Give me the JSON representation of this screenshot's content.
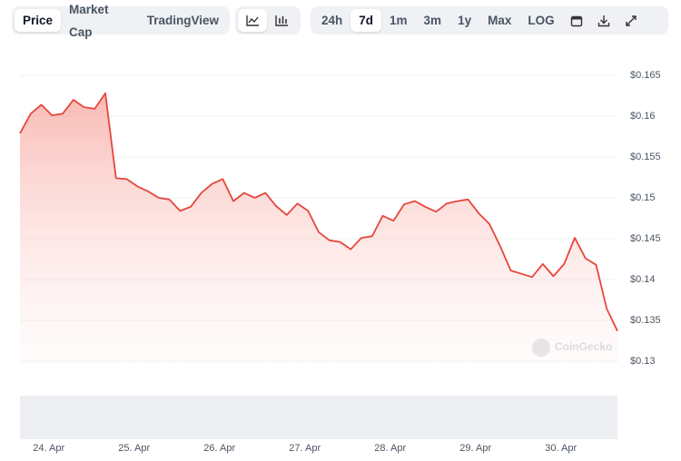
{
  "toolbar": {
    "views": [
      "Price",
      "Market Cap",
      "TradingView"
    ],
    "ranges": [
      "24h",
      "7d",
      "1m",
      "3m",
      "1y",
      "Max",
      "LOG"
    ],
    "active_view": "Price",
    "active_range": "7d"
  },
  "chart_data": {
    "type": "area",
    "watermark": "CoinGecko",
    "series": [
      {
        "color": "#e5473c",
        "values": [
          0.1579,
          0.1603,
          0.1614,
          0.1601,
          0.1603,
          0.162,
          0.1611,
          0.1609,
          0.1628,
          0.1524,
          0.1523,
          0.1514,
          0.1508,
          0.15,
          0.1498,
          0.1484,
          0.1489,
          0.1506,
          0.1517,
          0.1523,
          0.1496,
          0.1506,
          0.15,
          0.1506,
          0.149,
          0.1479,
          0.1493,
          0.1484,
          0.1458,
          0.1448,
          0.1446,
          0.1437,
          0.1451,
          0.1453,
          0.1478,
          0.1472,
          0.1492,
          0.1496,
          0.1489,
          0.1483,
          0.1493,
          0.1496,
          0.1498,
          0.1481,
          0.1468,
          0.1441,
          0.1411,
          0.1407,
          0.1403,
          0.1419,
          0.1404,
          0.1419,
          0.1451,
          0.1426,
          0.1418,
          0.1364,
          0.1337
        ]
      }
    ],
    "xlim": [
      0,
      56
    ],
    "xticks": [
      {
        "value": 2.7,
        "label": "24. Apr"
      },
      {
        "value": 10.7,
        "label": "25. Apr"
      },
      {
        "value": 18.7,
        "label": "26. Apr"
      },
      {
        "value": 26.7,
        "label": "27. Apr"
      },
      {
        "value": 34.7,
        "label": "28. Apr"
      },
      {
        "value": 42.7,
        "label": "29. Apr"
      },
      {
        "value": 50.7,
        "label": "30. Apr"
      }
    ],
    "ylim": [
      0.1275,
      0.1675
    ],
    "yticks": [
      {
        "value": 0.13,
        "label": "$0.13"
      },
      {
        "value": 0.135,
        "label": "$0.135"
      },
      {
        "value": 0.14,
        "label": "$0.14"
      },
      {
        "value": 0.145,
        "label": "$0.145"
      },
      {
        "value": 0.15,
        "label": "$0.15"
      },
      {
        "value": 0.155,
        "label": "$0.155"
      },
      {
        "value": 0.16,
        "label": "$0.16"
      },
      {
        "value": 0.165,
        "label": "$0.165"
      }
    ],
    "grid": true
  }
}
